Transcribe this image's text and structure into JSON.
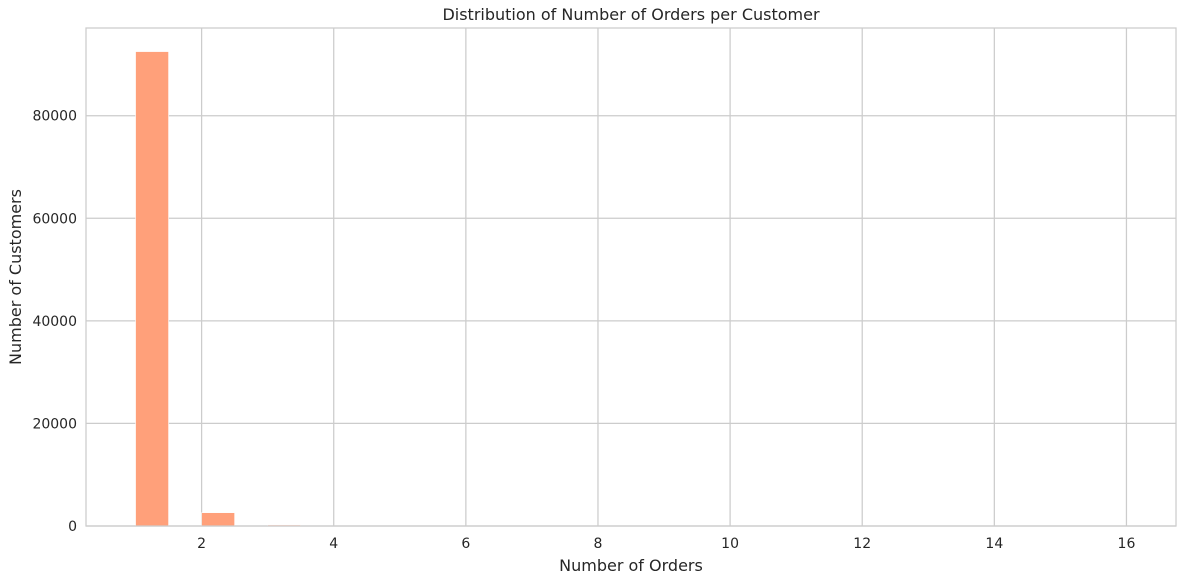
{
  "chart_data": {
    "type": "bar",
    "title": "Distribution of Number of Orders per Customer",
    "xlabel": "Number of Orders",
    "ylabel": "Number of Customers",
    "xlim": [
      0.25,
      16.75
    ],
    "ylim": [
      0,
      97100
    ],
    "xticks": [
      2,
      4,
      6,
      8,
      10,
      12,
      14,
      16
    ],
    "yticks": [
      0,
      20000,
      40000,
      60000,
      80000
    ],
    "grid": true,
    "bar_color": "#FFA07A",
    "bins": [
      {
        "x0": 1.0,
        "x1": 1.5,
        "value": 92500
      },
      {
        "x0": 2.0,
        "x1": 2.5,
        "value": 2600
      },
      {
        "x0": 3.0,
        "x1": 3.5,
        "value": 200
      },
      {
        "x0": 4.0,
        "x1": 4.5,
        "value": 30
      },
      {
        "x0": 5.0,
        "x1": 5.5,
        "value": 9
      },
      {
        "x0": 6.0,
        "x1": 6.5,
        "value": 5
      },
      {
        "x0": 7.0,
        "x1": 7.5,
        "value": 3
      },
      {
        "x0": 9.0,
        "x1": 9.5,
        "value": 1
      },
      {
        "x0": 16.0,
        "x1": 16.5,
        "value": 1
      }
    ]
  }
}
